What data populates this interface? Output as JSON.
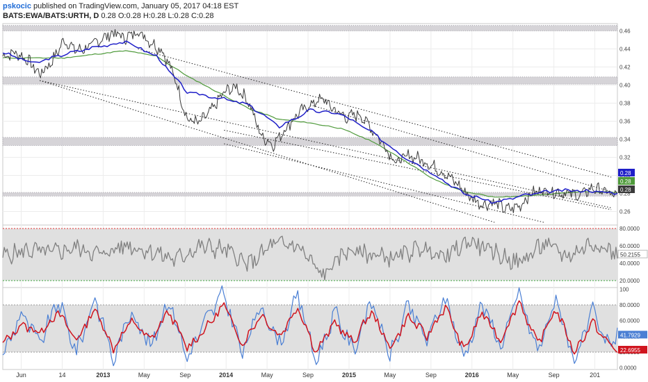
{
  "header": {
    "author": "pskocic",
    "published_text": "published on TradingView.com, January 05, 2017 04:18 EST",
    "symbol": "BATS:EWA/BATS:URTH, D",
    "ohlc": "0.28 O:0.28 H:0.28 L:0.28 C:0.28"
  },
  "colors": {
    "price": "#3a3a3a",
    "ma_fast": "#1f1fc8",
    "ma_slow": "#4f9a3b",
    "rsi": "#808080",
    "stoch_k": "#4a7fd4",
    "stoch_d": "#d0141e",
    "zone": "#cfcdd2",
    "upper_band": "#e03030",
    "lower_band": "#3aa53a"
  },
  "chart_data": [
    {
      "type": "line",
      "panel": "price",
      "title": "BATS:EWA/BATS:URTH, D",
      "x_ticks": [
        "Jun",
        "14",
        "2013",
        "May",
        "Sep",
        "2014",
        "May",
        "Sep",
        "2015",
        "May",
        "Sep",
        "2016",
        "May",
        "Sep",
        "201"
      ],
      "ylim": [
        0.245,
        0.468
      ],
      "y_ticks": [
        "0.26",
        "0.28",
        "0.30",
        "0.32",
        "0.34",
        "0.36",
        "0.38",
        "0.40",
        "0.42",
        "0.44",
        "0.46"
      ],
      "series": [
        {
          "role": "price",
          "x": [
            0,
            0.02,
            0.04,
            0.06,
            0.08,
            0.1,
            0.12,
            0.14,
            0.16,
            0.18,
            0.2,
            0.22,
            0.24,
            0.26,
            0.28,
            0.3,
            0.32,
            0.34,
            0.36,
            0.38,
            0.4,
            0.42,
            0.44,
            0.46,
            0.48,
            0.5,
            0.52,
            0.54,
            0.56,
            0.58,
            0.6,
            0.62,
            0.64,
            0.66,
            0.68,
            0.7,
            0.72,
            0.74,
            0.76,
            0.78,
            0.8,
            0.82,
            0.84,
            0.86,
            0.88,
            0.9,
            0.92,
            0.94,
            0.96,
            0.98,
            1
          ],
          "values": [
            0.432,
            0.436,
            0.428,
            0.412,
            0.426,
            0.45,
            0.438,
            0.442,
            0.451,
            0.458,
            0.452,
            0.46,
            0.448,
            0.438,
            0.408,
            0.362,
            0.358,
            0.372,
            0.392,
            0.398,
            0.382,
            0.344,
            0.334,
            0.352,
            0.368,
            0.378,
            0.385,
            0.372,
            0.364,
            0.368,
            0.352,
            0.334,
            0.314,
            0.322,
            0.318,
            0.31,
            0.302,
            0.29,
            0.276,
            0.268,
            0.27,
            0.262,
            0.266,
            0.28,
            0.284,
            0.282,
            0.28,
            0.278,
            0.286,
            0.282,
            0.276
          ]
        },
        {
          "role": "ma_fast",
          "x": [
            0,
            0.05,
            0.1,
            0.15,
            0.2,
            0.25,
            0.3,
            0.35,
            0.4,
            0.45,
            0.5,
            0.55,
            0.6,
            0.65,
            0.7,
            0.75,
            0.8,
            0.85,
            0.9,
            0.95,
            1
          ],
          "values": [
            0.436,
            0.424,
            0.434,
            0.442,
            0.448,
            0.432,
            0.392,
            0.386,
            0.378,
            0.354,
            0.372,
            0.368,
            0.348,
            0.322,
            0.302,
            0.28,
            0.27,
            0.278,
            0.283,
            0.283,
            0.28
          ]
        },
        {
          "role": "ma_slow",
          "x": [
            0.1,
            0.15,
            0.2,
            0.25,
            0.3,
            0.35,
            0.4,
            0.45,
            0.5,
            0.55,
            0.6,
            0.65,
            0.7,
            0.75,
            0.8,
            0.85,
            0.9,
            0.95,
            1
          ],
          "values": [
            0.43,
            0.434,
            0.438,
            0.432,
            0.41,
            0.392,
            0.374,
            0.362,
            0.358,
            0.352,
            0.338,
            0.318,
            0.296,
            0.282,
            0.276,
            0.277,
            0.28,
            0.282,
            0.281
          ]
        }
      ],
      "zones": [
        [
          0.46,
          0.466
        ],
        [
          0.401,
          0.409
        ],
        [
          0.333,
          0.342
        ],
        [
          0.277,
          0.281
        ]
      ],
      "price_labels": [
        "0.28",
        "0.28",
        "0.28"
      ]
    },
    {
      "type": "line",
      "panel": "rsi",
      "ylim": [
        12,
        84
      ],
      "y_ticks": [
        "20.0000",
        "40.0000",
        "60.0000",
        "80.0000"
      ],
      "bands": [
        20,
        80
      ],
      "series": [
        {
          "role": "rsi",
          "x": [
            0,
            0.04,
            0.08,
            0.12,
            0.16,
            0.2,
            0.24,
            0.28,
            0.32,
            0.36,
            0.4,
            0.44,
            0.48,
            0.52,
            0.56,
            0.6,
            0.64,
            0.68,
            0.72,
            0.76,
            0.8,
            0.84,
            0.88,
            0.92,
            0.96,
            1
          ],
          "values": [
            48,
            55,
            52,
            58,
            50,
            61,
            54,
            44,
            59,
            56,
            38,
            62,
            60,
            25,
            55,
            50,
            46,
            58,
            47,
            66,
            52,
            40,
            62,
            48,
            64,
            50.2155
          ]
        }
      ],
      "last_value": "50.2155"
    },
    {
      "type": "line",
      "panel": "stoch",
      "ylim": [
        -2,
        102
      ],
      "y_ticks": [
        "0.0000",
        "20.0000",
        "40.0000",
        "60.0000",
        "80.0000",
        "100"
      ],
      "band": [
        20,
        80
      ],
      "series": [
        {
          "role": "stoch_k",
          "x": [
            0,
            0.03,
            0.06,
            0.09,
            0.12,
            0.15,
            0.18,
            0.21,
            0.24,
            0.27,
            0.3,
            0.33,
            0.36,
            0.39,
            0.42,
            0.45,
            0.48,
            0.51,
            0.54,
            0.57,
            0.6,
            0.63,
            0.66,
            0.69,
            0.72,
            0.75,
            0.78,
            0.81,
            0.84,
            0.87,
            0.9,
            0.93,
            0.96,
            0.98,
            1
          ],
          "values": [
            15,
            70,
            30,
            85,
            20,
            90,
            10,
            75,
            25,
            88,
            12,
            60,
            95,
            18,
            80,
            30,
            92,
            8,
            70,
            22,
            85,
            15,
            78,
            35,
            90,
            12,
            82,
            28,
            95,
            20,
            88,
            10,
            70,
            30,
            41.7929
          ]
        },
        {
          "role": "stoch_d",
          "x": [
            0,
            0.03,
            0.06,
            0.09,
            0.12,
            0.15,
            0.18,
            0.21,
            0.24,
            0.27,
            0.3,
            0.33,
            0.36,
            0.39,
            0.42,
            0.45,
            0.48,
            0.51,
            0.54,
            0.57,
            0.6,
            0.63,
            0.66,
            0.69,
            0.72,
            0.75,
            0.78,
            0.81,
            0.84,
            0.87,
            0.9,
            0.93,
            0.96,
            0.98,
            1
          ],
          "values": [
            30,
            55,
            45,
            70,
            35,
            75,
            25,
            60,
            35,
            72,
            25,
            50,
            80,
            30,
            68,
            40,
            78,
            20,
            58,
            32,
            72,
            25,
            65,
            40,
            78,
            22,
            70,
            35,
            85,
            30,
            75,
            20,
            58,
            35,
            22.6955
          ]
        }
      ],
      "last_values": [
        "41.7929",
        "22.6955"
      ]
    }
  ]
}
